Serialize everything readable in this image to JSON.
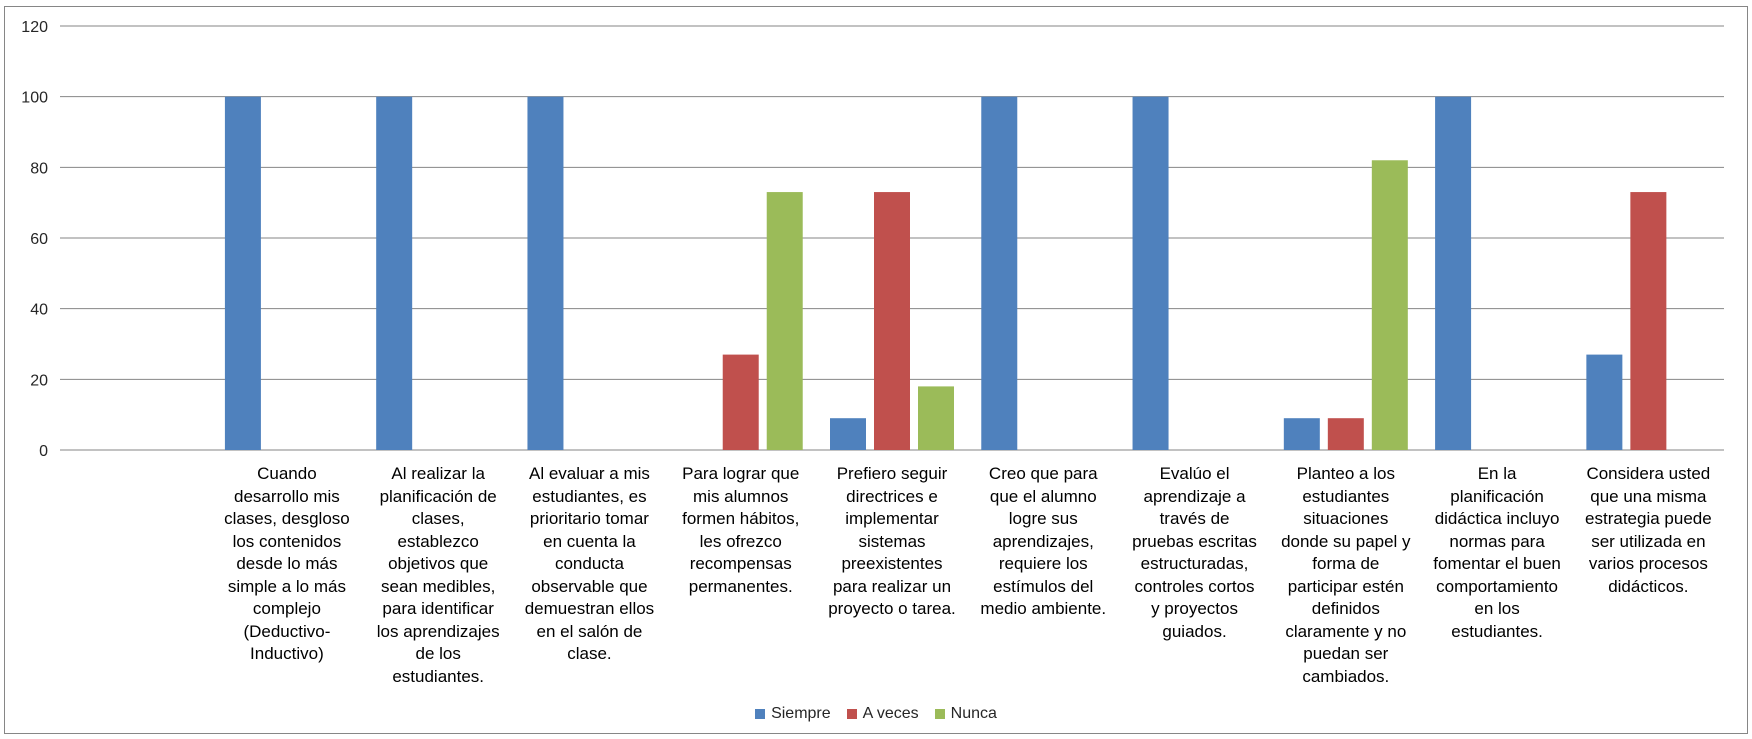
{
  "chart_data": {
    "type": "bar",
    "title": "",
    "xlabel": "",
    "ylabel": "",
    "ylim": [
      0,
      120
    ],
    "yticks": [
      0,
      20,
      40,
      60,
      80,
      100,
      120
    ],
    "grid": true,
    "legend_position": "bottom",
    "categories": [
      "",
      "Cuando desarrollo mis clases, desgloso los contenidos desde lo más simple a lo más complejo (Deductivo-Inductivo)",
      "Al realizar la planificación de clases, establezco objetivos que sean medibles, para identificar los aprendizajes de los estudiantes.",
      "Al evaluar a mis estudiantes, es prioritario tomar en cuenta la conducta observable que demuestran ellos en el salón de clase.",
      "Para lograr que mis alumnos formen hábitos, les ofrezco recompensas permanentes.",
      "Prefiero seguir directrices e implementar sistemas preexistentes para realizar un proyecto o tarea.",
      "Creo que para que el alumno logre sus aprendizajes, requiere los estímulos del medio ambiente.",
      "Evalúo el aprendizaje a través de pruebas escritas estructuradas, controles cortos y proyectos guiados.",
      "Planteo a los estudiantes situaciones donde su papel y forma de participar estén definidos claramente y no puedan ser cambiados.",
      "En la planificación didáctica incluyo normas para fomentar el buen comportamiento en los estudiantes.",
      "Considera usted que una misma estrategia puede ser utilizada en varios procesos didácticos."
    ],
    "category_lines": [
      [],
      [
        "Cuando",
        "desarrollo mis",
        "clases, desgloso",
        "los contenidos",
        "desde lo más",
        "simple a lo más",
        "complejo",
        "(Deductivo-",
        "Inductivo)"
      ],
      [
        "Al realizar la",
        "planificación de",
        "clases,",
        "establezco",
        "objetivos que",
        "sean medibles,",
        "para identificar",
        "los aprendizajes",
        "de los",
        "estudiantes."
      ],
      [
        "Al evaluar a mis",
        "estudiantes, es",
        "prioritario tomar",
        "en cuenta la",
        "conducta",
        "observable que",
        "demuestran ellos",
        "en el salón de",
        "clase."
      ],
      [
        "Para lograr que",
        "mis alumnos",
        "formen hábitos,",
        "les ofrezco",
        "recompensas",
        "permanentes."
      ],
      [
        "Prefiero seguir",
        "directrices e",
        "implementar",
        "sistemas",
        "preexistentes",
        "para realizar un",
        "proyecto o tarea."
      ],
      [
        "Creo que para",
        "que el alumno",
        "logre sus",
        "aprendizajes,",
        "requiere los",
        "estímulos del",
        "medio ambiente."
      ],
      [
        "Evalúo el",
        "aprendizaje a",
        "través de",
        "pruebas escritas",
        "estructuradas,",
        "controles cortos",
        "y proyectos",
        "guiados."
      ],
      [
        "Planteo a los",
        "estudiantes",
        "situaciones",
        "donde su papel y",
        "forma de",
        "participar estén",
        "definidos",
        "claramente y no",
        "puedan ser",
        "cambiados."
      ],
      [
        "En la",
        "planificación",
        "didáctica incluyo",
        "normas para",
        "fomentar el buen",
        "comportamiento",
        "en los",
        "estudiantes."
      ],
      [
        "Considera usted",
        "que una misma",
        "estrategia puede",
        "ser utilizada en",
        "varios procesos",
        "didácticos."
      ]
    ],
    "series": [
      {
        "name": "Siempre",
        "color": "#4F81BD",
        "values": [
          null,
          100,
          100,
          100,
          0,
          9,
          100,
          100,
          9,
          100,
          27
        ]
      },
      {
        "name": "A veces",
        "color": "#C0504D",
        "values": [
          null,
          0,
          0,
          0,
          27,
          73,
          0,
          0,
          9,
          0,
          73
        ]
      },
      {
        "name": "Nunca",
        "color": "#9BBB59",
        "values": [
          null,
          0,
          0,
          0,
          73,
          18,
          0,
          0,
          82,
          0,
          0
        ]
      }
    ]
  }
}
